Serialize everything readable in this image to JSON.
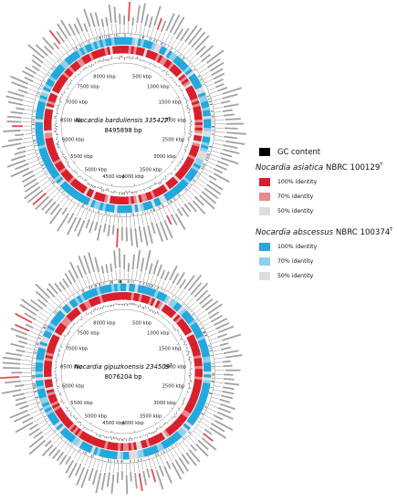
{
  "maps": [
    {
      "id": "top",
      "organism": "Nocardia barduliensis 335427",
      "organism_sup": "T",
      "size_label": "8495898 bp",
      "kbp_ticks": [
        "500 kbp",
        "1000 kbp",
        "1500 kbp",
        "2000 kbp",
        "2500 kbp",
        "3000 kbp",
        "3500 kbp",
        "4000 kbp",
        "4500 kbp",
        "5000 kbp",
        "5500 kbp",
        "6000 kbp",
        "6500 kbp",
        "7000 kbp",
        "7500 kbp",
        "8000 kbp"
      ]
    },
    {
      "id": "bottom",
      "organism": "Nocardia gipuzkoensis 234509",
      "organism_sup": "T",
      "size_label": "8076204 bp",
      "kbp_ticks": [
        "500 kbp",
        "1000 kbp",
        "1500 kbp",
        "2000 kbp",
        "2500 kbp",
        "3000 kbp",
        "3500 kbp",
        "4000 kbp",
        "4500 kbp",
        "5000 kbp",
        "5500 kbp",
        "6000 kbp",
        "6500 kbp",
        "7000 kbp",
        "7500 kbp",
        "8000 kbp"
      ]
    }
  ],
  "colors": {
    "asiatica_100": "#d81e2a",
    "asiatica_70": "#e8898d",
    "asiatica_50": "#dddddd",
    "abscessus_100": "#22a8dc",
    "abscessus_70": "#8fcfea",
    "abscessus_50": "#dddddd",
    "gc": "#000000",
    "highlight_label": "#e5333a"
  },
  "legend": {
    "gc": {
      "label": "GC content"
    },
    "groups": [
      {
        "title": "Nocardia asiatica",
        "title_suffix": " NBRC 100129",
        "title_sup": "T",
        "items": [
          "100% identity",
          "70% identity",
          "50% identity"
        ]
      },
      {
        "title": "Nocardia abscessus",
        "title_suffix": " NBRC 100374",
        "title_sup": "T",
        "items": [
          "100% identity",
          "70% identity",
          "50% identity"
        ]
      }
    ]
  }
}
